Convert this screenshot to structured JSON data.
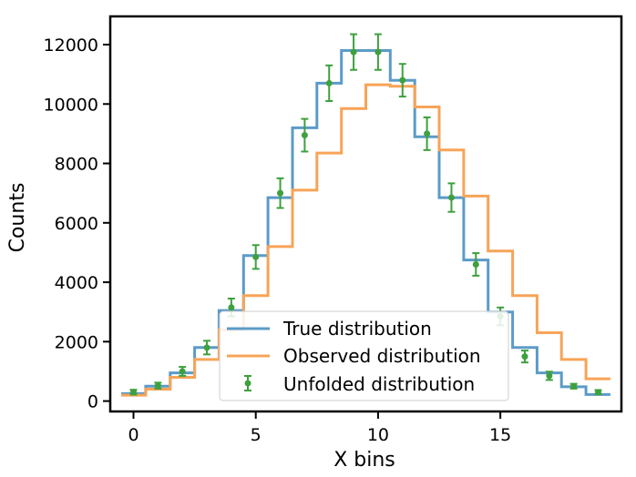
{
  "chart_data": {
    "type": "line",
    "xlabel": "X bins",
    "ylabel": "Counts",
    "xlim": [
      -0.95,
      19.95
    ],
    "ylim": [
      -350,
      12950
    ],
    "x_ticks": [
      0,
      5,
      10,
      15
    ],
    "y_ticks": [
      0,
      2000,
      4000,
      6000,
      8000,
      10000,
      12000
    ],
    "legend_position": "lower-center",
    "series": [
      {
        "name": "True distribution",
        "style": "step",
        "color": "#5b9bc8",
        "x": [
          0,
          1,
          2,
          3,
          4,
          5,
          6,
          7,
          8,
          9,
          10,
          11,
          12,
          13,
          14,
          15,
          16,
          17,
          18,
          19
        ],
        "values": [
          250,
          500,
          950,
          1800,
          3050,
          4900,
          6850,
          9200,
          10700,
          11800,
          11800,
          10800,
          8900,
          6850,
          4750,
          3000,
          1800,
          950,
          480,
          220
        ]
      },
      {
        "name": "Observed distribution",
        "style": "step",
        "color": "#f7a457",
        "x": [
          0,
          1,
          2,
          3,
          4,
          5,
          6,
          7,
          8,
          9,
          10,
          11,
          12,
          13,
          14,
          15,
          16,
          17,
          18,
          19
        ],
        "values": [
          200,
          400,
          800,
          1400,
          2400,
          3550,
          5200,
          7100,
          8350,
          9850,
          10650,
          10600,
          9900,
          8450,
          6900,
          5050,
          3550,
          2300,
          1400,
          750
        ]
      },
      {
        "name": "Unfolded distribution",
        "style": "errorbar",
        "color": "#3ea03e",
        "x": [
          0,
          1,
          2,
          3,
          4,
          5,
          6,
          7,
          8,
          9,
          10,
          11,
          12,
          13,
          14,
          15,
          16,
          17,
          18,
          19
        ],
        "values": [
          300,
          520,
          1000,
          1800,
          3150,
          4850,
          7000,
          8950,
          10700,
          11750,
          11750,
          10800,
          9000,
          6850,
          4600,
          2850,
          1500,
          850,
          500,
          300
        ],
        "errors": [
          80,
          100,
          150,
          230,
          300,
          400,
          500,
          550,
          600,
          600,
          600,
          550,
          550,
          480,
          380,
          300,
          200,
          140,
          80,
          70
        ]
      }
    ]
  }
}
